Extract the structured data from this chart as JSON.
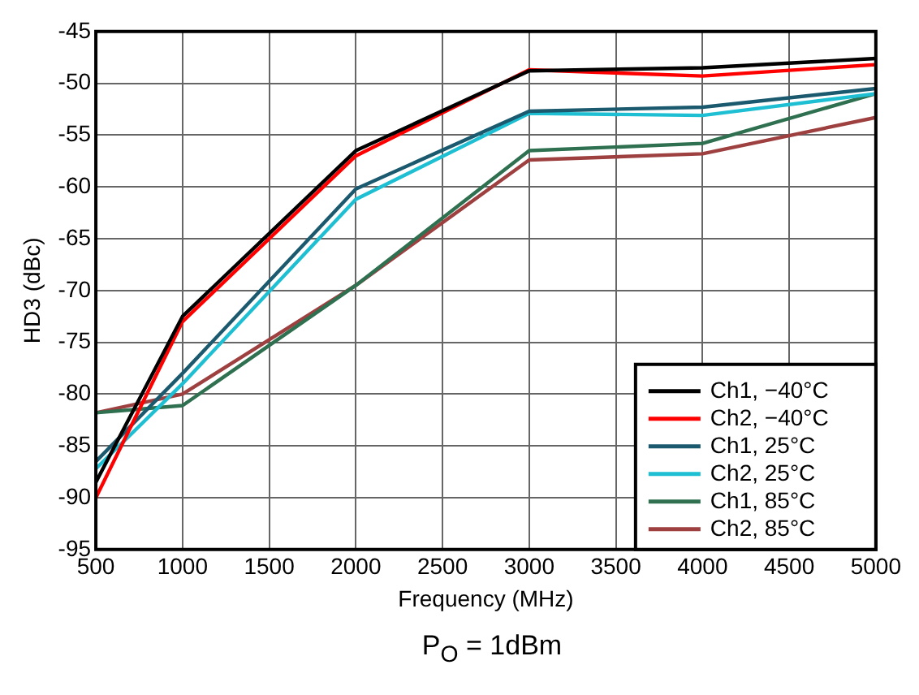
{
  "chart_data": {
    "type": "line",
    "xlabel": "Frequency (MHz)",
    "ylabel": "HD3 (dBc)",
    "x": [
      500,
      1000,
      2000,
      3000,
      4000,
      5000
    ],
    "series": [
      {
        "name": "Ch1, −40°C",
        "color": "#000000",
        "values": [
          -88.5,
          -72.5,
          -56.5,
          -48.8,
          -48.5,
          -47.6
        ]
      },
      {
        "name": "Ch2, −40°C",
        "color": "#ff0000",
        "values": [
          -90,
          -73,
          -57,
          -48.7,
          -49.3,
          -48.2
        ]
      },
      {
        "name": "Ch1, 25°C",
        "color": "#1b5a6e",
        "values": [
          -86.5,
          -78,
          -60.2,
          -52.7,
          -52.3,
          -50.5
        ]
      },
      {
        "name": "Ch2, 25°C",
        "color": "#1ebfd2",
        "values": [
          -87.2,
          -79,
          -61.2,
          -52.9,
          -53.1,
          -51
        ]
      },
      {
        "name": "Ch1, 85°C",
        "color": "#2e7050",
        "values": [
          -81.8,
          -81.1,
          -69.5,
          -56.5,
          -55.8,
          -51
        ]
      },
      {
        "name": "Ch2, 85°C",
        "color": "#9e4040",
        "values": [
          -81.8,
          -80,
          -69.5,
          -57.4,
          -56.8,
          -53.3
        ]
      }
    ],
    "xlim": [
      500,
      5000
    ],
    "xticks": [
      500,
      1000,
      1500,
      2000,
      2500,
      3000,
      3500,
      4000,
      4500,
      5000
    ],
    "ylim": [
      -95,
      -45
    ],
    "yticks": [
      -95,
      -90,
      -85,
      -80,
      -75,
      -70,
      -65,
      -60,
      -55,
      -50,
      -45
    ],
    "grid": true,
    "legend": "bottom right",
    "marker": "none",
    "line_style": "solid",
    "annotations": [
      "P$_{O}$ = 1dBm"
    ]
  }
}
